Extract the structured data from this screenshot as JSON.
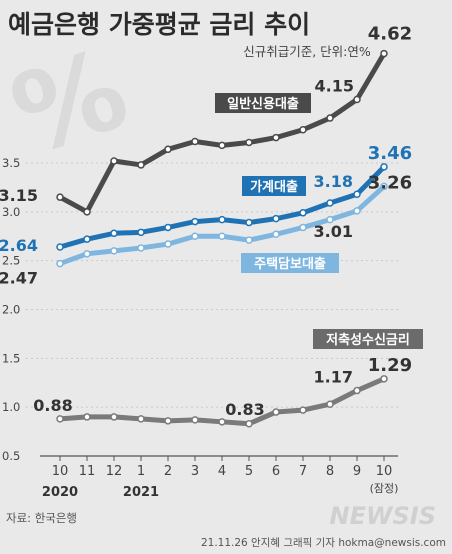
{
  "chart_data": {
    "type": "line",
    "title": "예금은행 가중평균 금리 추이",
    "subtitle": "신규취급기준, 단위:연%",
    "categories": [
      "10",
      "11",
      "12",
      "1",
      "2",
      "3",
      "4",
      "5",
      "6",
      "7",
      "8",
      "9",
      "10"
    ],
    "year_labels": [
      "2020",
      "2021"
    ],
    "note": "(잠정)",
    "ylim": [
      0.5,
      4.8
    ],
    "yticks": [
      "0.5",
      "1.0",
      "1.5",
      "2.0",
      "2.5",
      "3.0",
      "3.5"
    ],
    "series": [
      {
        "name": "일반신용대출",
        "color": "#4a4a4a",
        "values": [
          3.15,
          3.0,
          3.52,
          3.48,
          3.64,
          3.72,
          3.68,
          3.71,
          3.76,
          3.84,
          3.96,
          4.15,
          4.62
        ],
        "labels": [
          {
            "index": 0,
            "text": "3.15"
          },
          {
            "index": 11,
            "text": "4.15"
          },
          {
            "index": 12,
            "text": "4.62"
          }
        ]
      },
      {
        "name": "가계대출",
        "color": "#1f73b5",
        "values": [
          2.64,
          2.72,
          2.78,
          2.79,
          2.84,
          2.9,
          2.92,
          2.89,
          2.93,
          2.99,
          3.09,
          3.18,
          3.46
        ],
        "labels": [
          {
            "index": 0,
            "text": "2.64"
          },
          {
            "index": 11,
            "text": "3.18"
          },
          {
            "index": 12,
            "text": "3.46"
          }
        ]
      },
      {
        "name": "주택담보대출",
        "color": "#7eb6e0",
        "values": [
          2.47,
          2.57,
          2.6,
          2.63,
          2.67,
          2.75,
          2.75,
          2.71,
          2.77,
          2.84,
          2.92,
          3.01,
          3.26
        ],
        "labels": [
          {
            "index": 0,
            "text": "2.47"
          },
          {
            "index": 11,
            "text": "3.01"
          },
          {
            "index": 12,
            "text": "3.26"
          }
        ]
      },
      {
        "name": "저축성수신금리",
        "color": "#7a7a7a",
        "values": [
          0.88,
          0.9,
          0.9,
          0.88,
          0.86,
          0.87,
          0.85,
          0.83,
          0.95,
          0.97,
          1.03,
          1.17,
          1.29
        ],
        "labels": [
          {
            "index": 0,
            "text": "0.88"
          },
          {
            "index": 7,
            "text": "0.83"
          },
          {
            "index": 11,
            "text": "1.17"
          },
          {
            "index": 12,
            "text": "1.29"
          }
        ]
      }
    ]
  },
  "decor": {
    "percent_glyph": "%"
  },
  "footer": {
    "source": "자료: 한국은행",
    "credit": "21.11.26 안지혜 그래픽 기자  hokma@newsis.com",
    "watermark": "NEWSIS"
  }
}
